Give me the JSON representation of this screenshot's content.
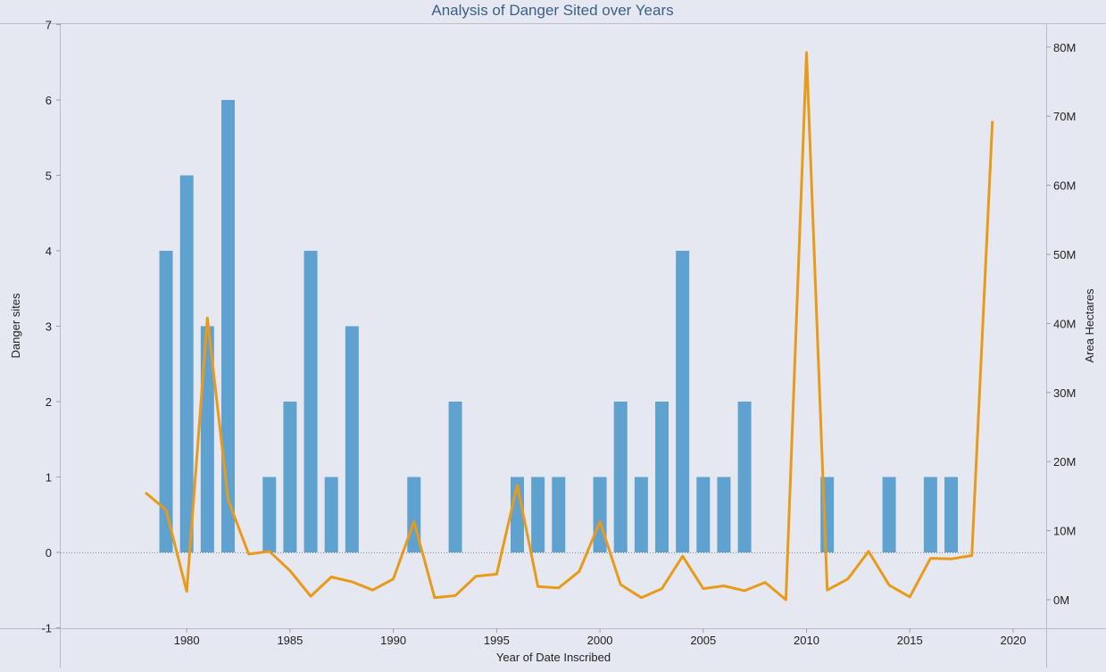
{
  "chart_data": {
    "type": "bar",
    "title": "Analysis of Danger Sited over Years",
    "xlabel": "Year of Date Inscribed",
    "ylabel": "Danger sites",
    "y2label": "Area Hectares",
    "xlim": [
      1973.9,
      2021.6
    ],
    "ylim": [
      -1,
      7
    ],
    "y2lim": [
      -4,
      81
    ],
    "x_ticks": [
      1980,
      1985,
      1990,
      1995,
      2000,
      2005,
      2010,
      2015,
      2020
    ],
    "y_ticks": [
      -1,
      0,
      1,
      2,
      3,
      4,
      5,
      6,
      7
    ],
    "y2_ticks": [
      {
        "value": 0,
        "label": "0M"
      },
      {
        "value": 10,
        "label": "10M"
      },
      {
        "value": 20,
        "label": "20M"
      },
      {
        "value": 30,
        "label": "30M"
      },
      {
        "value": 40,
        "label": "40M"
      },
      {
        "value": 50,
        "label": "50M"
      },
      {
        "value": 60,
        "label": "60M"
      },
      {
        "value": 70,
        "label": "70M"
      },
      {
        "value": 80,
        "label": "80M"
      }
    ],
    "x": [
      1978,
      1979,
      1980,
      1981,
      1982,
      1983,
      1984,
      1985,
      1986,
      1987,
      1988,
      1989,
      1990,
      1991,
      1992,
      1993,
      1994,
      1995,
      1996,
      1997,
      1998,
      1999,
      2000,
      2001,
      2002,
      2003,
      2004,
      2005,
      2006,
      2007,
      2008,
      2009,
      2010,
      2011,
      2012,
      2013,
      2014,
      2015,
      2016,
      2017,
      2018,
      2019
    ],
    "series": [
      {
        "type": "bar",
        "axis": "left",
        "color": "#5fa2d0",
        "values": [
          0,
          4,
          5,
          3,
          6,
          0,
          1,
          2,
          4,
          1,
          3,
          0,
          0,
          1,
          0,
          2,
          0,
          0,
          1,
          1,
          1,
          0,
          1,
          2,
          1,
          2,
          4,
          1,
          1,
          2,
          0,
          0,
          0,
          1,
          0,
          0,
          1,
          0,
          1,
          1,
          0,
          0
        ]
      },
      {
        "type": "line",
        "axis": "right",
        "color": "#e89a1a",
        "values": [
          15.5,
          13.0,
          1.2,
          40.8,
          14.5,
          6.6,
          7.0,
          4.2,
          0.5,
          3.3,
          2.6,
          1.4,
          3.0,
          11.3,
          0.3,
          0.6,
          3.4,
          3.7,
          16.6,
          1.9,
          1.7,
          4.1,
          11.3,
          2.2,
          0.3,
          1.6,
          6.3,
          1.6,
          2.0,
          1.3,
          2.5,
          0.0,
          79.2,
          1.4,
          3.0,
          7.0,
          2.1,
          0.4,
          6.0,
          5.9,
          6.4,
          69.3
        ]
      }
    ],
    "grid": false,
    "legend": "none"
  }
}
